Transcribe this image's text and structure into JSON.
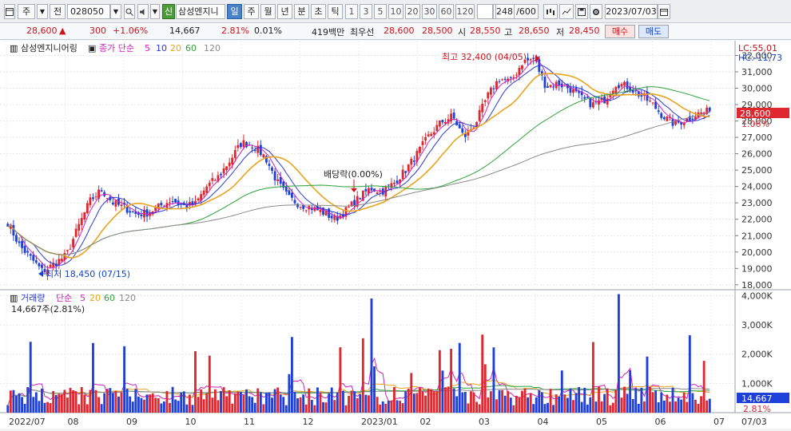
{
  "toolbar": {
    "market": "주",
    "prev_label": "전",
    "code": "028050",
    "badge": "신",
    "name": "삼성엔지니",
    "periods": [
      "일",
      "주",
      "월",
      "년",
      "분",
      "초",
      "틱"
    ],
    "active_period": "일",
    "intervals": [
      "1",
      "3",
      "5",
      "10",
      "20",
      "30",
      "60",
      "120"
    ],
    "count": "248",
    "count_total": "/600",
    "date": "2023/07/03"
  },
  "quote": {
    "price": "28,600",
    "change_arrow": "▲",
    "change": "300",
    "change_pct": "+1.06%",
    "volume": "14,667",
    "volume_pct": "2.81%",
    "turnover": "0.01%",
    "amount": "419백만",
    "best_ask_label": "최우선",
    "best_ask": "28,600",
    "best_bid": "28,500",
    "open_label": "시",
    "open": "28,550",
    "high_label": "고",
    "high": "28,650",
    "low_label": "저",
    "low": "28,450",
    "buy": "매수",
    "sell": "매도"
  },
  "price_panel": {
    "stock_label": "삼성엔지니어링",
    "ma_label": "종가 단순",
    "ma_periods": [
      "5",
      "10",
      "20",
      "60",
      "120"
    ],
    "lc": "LC:55,01",
    "hc": "HC:-11,73",
    "last_price": "28,600",
    "last_pct": "1.06%",
    "high_note": "최고 32,400 (04/05)",
    "low_note": "최저 18,450 (07/15)",
    "dividend_note": "배당락(0.00%)"
  },
  "volume_panel": {
    "label": "거래량",
    "ma_label": "단순",
    "ma_periods": [
      "5",
      "20",
      "60",
      "120"
    ],
    "value_note": "14,667주(2.81%)",
    "last_volume": "14,667",
    "last_pct": "2.81%"
  },
  "colors": {
    "up": "#e0262e",
    "down": "#1e3fd8",
    "ma5": "#d020c0",
    "ma10": "#2a39d6",
    "ma20": "#e9a41d",
    "ma60": "#2ea33a",
    "ma120": "#8a8a8a"
  },
  "chart_data": [
    {
      "type": "line",
      "title": "삼성엔지니어링",
      "series": [
        {
          "name": "5",
          "values": []
        },
        {
          "name": "10",
          "values": []
        },
        {
          "name": "20",
          "values": []
        },
        {
          "name": "60",
          "values": []
        },
        {
          "name": "120",
          "values": []
        }
      ],
      "x_ticks": [
        "2022/07",
        "08",
        "09",
        "10",
        "11",
        "12",
        "2023/01",
        "02",
        "03",
        "04",
        "05",
        "06",
        "07"
      ],
      "x_end_label": "07/03",
      "y_ticks": [
        18000,
        19000,
        20000,
        21000,
        22000,
        23000,
        24000,
        25000,
        26000,
        27000,
        28000,
        29000,
        30000,
        31000,
        32000
      ],
      "ylim": [
        17700,
        32900
      ],
      "price_path": [
        21800,
        20400,
        19600,
        18800,
        19300,
        19800,
        21500,
        23100,
        23800,
        23000,
        22700,
        22300,
        22400,
        22800,
        23200,
        22800,
        22900,
        24000,
        24600,
        25600,
        26700,
        26500,
        25800,
        24300,
        23300,
        22900,
        22700,
        22400,
        22000,
        22600,
        23300,
        23900,
        23700,
        24200,
        25000,
        26000,
        27100,
        27900,
        28300,
        27000,
        27900,
        29500,
        30600,
        30400,
        31600,
        31800,
        30100,
        30300,
        30000,
        29400,
        29000,
        29300,
        30300,
        30100,
        29600,
        29100,
        28300,
        27800,
        28100,
        28450,
        28600
      ],
      "high": {
        "value": 32400,
        "date": "04/05"
      },
      "low": {
        "value": 18450,
        "date": "07/15"
      }
    },
    {
      "type": "bar",
      "title": "거래량",
      "y_ticks": [
        "1,000K",
        "2,000K",
        "3,000K",
        "4,000K"
      ],
      "ylim": [
        0,
        4200000
      ],
      "last": 14667
    }
  ]
}
